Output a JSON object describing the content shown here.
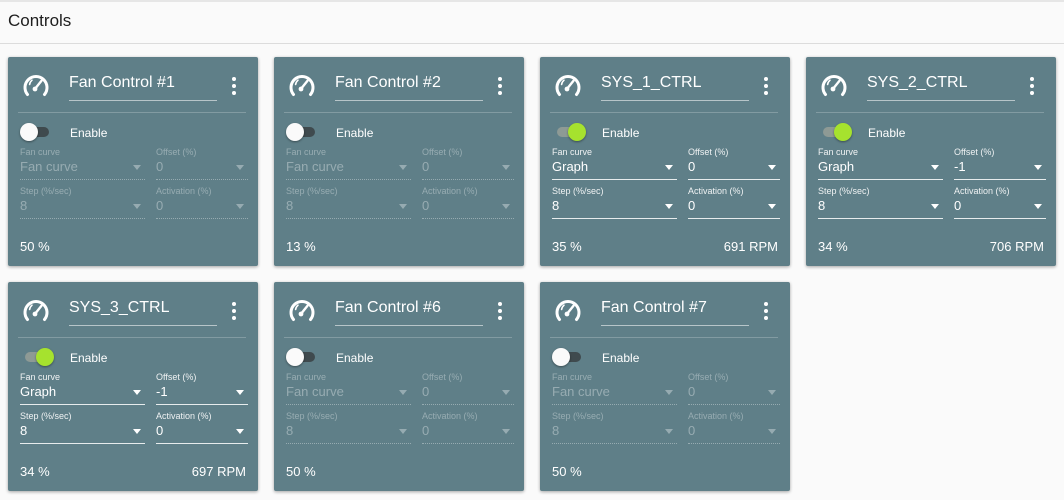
{
  "page": {
    "title": "Controls"
  },
  "labels": {
    "enable": "Enable",
    "fan_curve": "Fan curve",
    "offset": "Offset (%)",
    "step": "Step (%/sec)",
    "activation": "Activation (%)"
  },
  "icons": {
    "card": "speedometer-icon",
    "menu": "more-vert-icon",
    "dropdown": "dropdown-arrow-icon"
  },
  "colors": {
    "card_bg": "#5f7f88",
    "toggle_on": "#a6e22e"
  },
  "cards": [
    {
      "title": "Fan Control #1",
      "enabled": false,
      "fan_curve": "Fan curve",
      "offset": "0",
      "step": "8",
      "activation": "0",
      "percent": "50 %",
      "rpm": ""
    },
    {
      "title": "Fan Control #2",
      "enabled": false,
      "fan_curve": "Fan curve",
      "offset": "0",
      "step": "8",
      "activation": "0",
      "percent": "13 %",
      "rpm": ""
    },
    {
      "title": "SYS_1_CTRL",
      "enabled": true,
      "fan_curve": "Graph",
      "offset": "0",
      "step": "8",
      "activation": "0",
      "percent": "35 %",
      "rpm": "691 RPM"
    },
    {
      "title": "SYS_2_CTRL",
      "enabled": true,
      "fan_curve": "Graph",
      "offset": "-1",
      "step": "8",
      "activation": "0",
      "percent": "34 %",
      "rpm": "706 RPM"
    },
    {
      "title": "SYS_3_CTRL",
      "enabled": true,
      "fan_curve": "Graph",
      "offset": "-1",
      "step": "8",
      "activation": "0",
      "percent": "34 %",
      "rpm": "697 RPM"
    },
    {
      "title": "Fan Control #6",
      "enabled": false,
      "fan_curve": "Fan curve",
      "offset": "0",
      "step": "8",
      "activation": "0",
      "percent": "50 %",
      "rpm": ""
    },
    {
      "title": "Fan Control #7",
      "enabled": false,
      "fan_curve": "Fan curve",
      "offset": "0",
      "step": "8",
      "activation": "0",
      "percent": "50 %",
      "rpm": ""
    }
  ]
}
